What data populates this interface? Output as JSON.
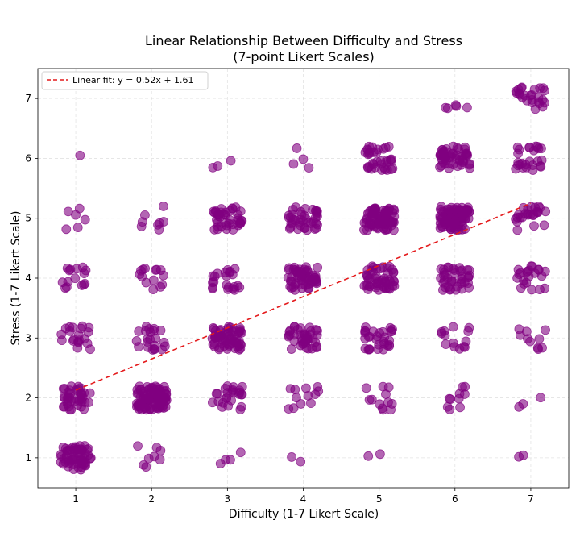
{
  "chart_data": {
    "type": "scatter",
    "title_line1": "Linear Relationship Between Difficulty and Stress",
    "title_line2": "(7-point Likert Scales)",
    "xlabel": "Difficulty (1-7 Likert Scale)",
    "ylabel": "Stress (1-7 Likert Scale)",
    "xlim": [
      0.5,
      7.5
    ],
    "ylim": [
      0.5,
      7.5
    ],
    "x_ticks": [
      1,
      2,
      3,
      4,
      5,
      6,
      7
    ],
    "y_ticks": [
      1,
      2,
      3,
      4,
      5,
      6,
      7
    ],
    "x_tick_labels": [
      "1",
      "2",
      "3",
      "4",
      "5",
      "6",
      "7"
    ],
    "y_tick_labels": [
      "1",
      "2",
      "3",
      "4",
      "5",
      "6",
      "7"
    ],
    "grid": true,
    "point_color": "#800080",
    "fit_color": "#e41a1c",
    "fit": {
      "slope": 0.52,
      "intercept": 1.61,
      "x_range": [
        1,
        7
      ],
      "label": "Linear fit: y = 0.52x + 1.61"
    },
    "legend_position": "upper-left",
    "jitter": 0.2,
    "cells": [
      {
        "x": 1,
        "y": 1,
        "n": 60
      },
      {
        "x": 1,
        "y": 2,
        "n": 40
      },
      {
        "x": 1,
        "y": 3,
        "n": 20
      },
      {
        "x": 1,
        "y": 4,
        "n": 15
      },
      {
        "x": 1,
        "y": 5,
        "n": 6
      },
      {
        "x": 1,
        "y": 6,
        "n": 1
      },
      {
        "x": 2,
        "y": 1,
        "n": 8
      },
      {
        "x": 2,
        "y": 2,
        "n": 90
      },
      {
        "x": 2,
        "y": 3,
        "n": 22
      },
      {
        "x": 2,
        "y": 4,
        "n": 14
      },
      {
        "x": 2,
        "y": 5,
        "n": 8
      },
      {
        "x": 3,
        "y": 1,
        "n": 4
      },
      {
        "x": 3,
        "y": 2,
        "n": 25
      },
      {
        "x": 3,
        "y": 3,
        "n": 60
      },
      {
        "x": 3,
        "y": 4,
        "n": 22
      },
      {
        "x": 3,
        "y": 5,
        "n": 40
      },
      {
        "x": 3,
        "y": 6,
        "n": 3
      },
      {
        "x": 4,
        "y": 1,
        "n": 2
      },
      {
        "x": 4,
        "y": 2,
        "n": 12
      },
      {
        "x": 4,
        "y": 3,
        "n": 40
      },
      {
        "x": 4,
        "y": 4,
        "n": 55
      },
      {
        "x": 4,
        "y": 5,
        "n": 40
      },
      {
        "x": 4,
        "y": 6,
        "n": 4
      },
      {
        "x": 5,
        "y": 1,
        "n": 2
      },
      {
        "x": 5,
        "y": 2,
        "n": 12
      },
      {
        "x": 5,
        "y": 3,
        "n": 30
      },
      {
        "x": 5,
        "y": 4,
        "n": 50
      },
      {
        "x": 5,
        "y": 5,
        "n": 80
      },
      {
        "x": 5,
        "y": 6,
        "n": 35
      },
      {
        "x": 6,
        "y": 2,
        "n": 10
      },
      {
        "x": 6,
        "y": 3,
        "n": 14
      },
      {
        "x": 6,
        "y": 4,
        "n": 40
      },
      {
        "x": 6,
        "y": 5,
        "n": 85
      },
      {
        "x": 6,
        "y": 6,
        "n": 50
      },
      {
        "x": 6,
        "y": 7,
        "n": 5
      },
      {
        "x": 7,
        "y": 1,
        "n": 2
      },
      {
        "x": 7,
        "y": 2,
        "n": 3
      },
      {
        "x": 7,
        "y": 3,
        "n": 10
      },
      {
        "x": 7,
        "y": 4,
        "n": 22
      },
      {
        "x": 7,
        "y": 5,
        "n": 25
      },
      {
        "x": 7,
        "y": 6,
        "n": 25
      },
      {
        "x": 7,
        "y": 7,
        "n": 25
      }
    ]
  }
}
